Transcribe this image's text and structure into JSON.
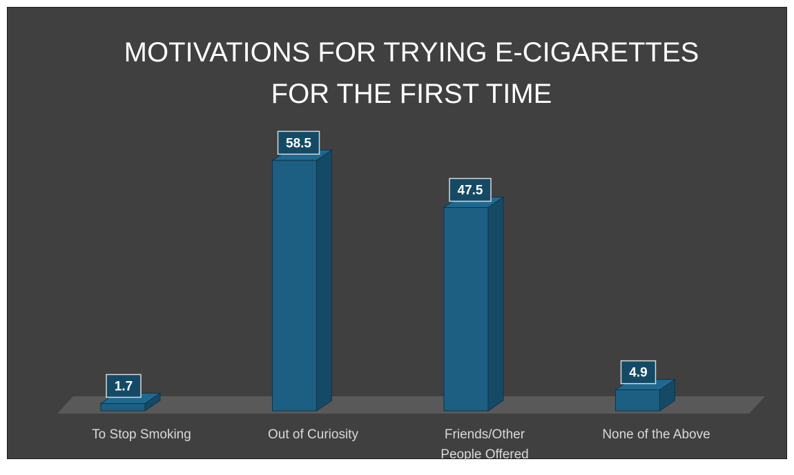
{
  "chart_data": {
    "type": "bar",
    "title": "MOTIVATIONS FOR TRYING E-CIGARETTES FOR THE FIRST TIME",
    "title_lines": [
      "MOTIVATIONS FOR TRYING E-CIGARETTES",
      "FOR THE FIRST TIME"
    ],
    "categories": [
      "To Stop Smoking",
      "Out of Curiosity",
      "Friends/Other People Offered",
      "None of the Above"
    ],
    "category_lines": [
      [
        "To Stop Smoking"
      ],
      [
        "Out of Curiosity"
      ],
      [
        "Friends/Other",
        "People Offered"
      ],
      [
        "None of the Above"
      ]
    ],
    "values": [
      1.7,
      58.5,
      47.5,
      4.9
    ],
    "value_labels": [
      "1.7",
      "58.5",
      "47.5",
      "4.9"
    ],
    "xlabel": "",
    "ylabel": "",
    "ylim": [
      0,
      60
    ],
    "grid": false,
    "legend": "none",
    "style": "3d-column",
    "colors": {
      "background": "#404040",
      "bar_front": "#1c5f82",
      "bar_side": "#154a66",
      "bar_top": "#1f6990",
      "bar_edge": "#0f3347",
      "floor": "#595959",
      "label_box_fill": "#154a66",
      "label_box_border": "#d9d9d9",
      "title": "#ffffff",
      "axis_text": "#d9d9d9"
    }
  }
}
